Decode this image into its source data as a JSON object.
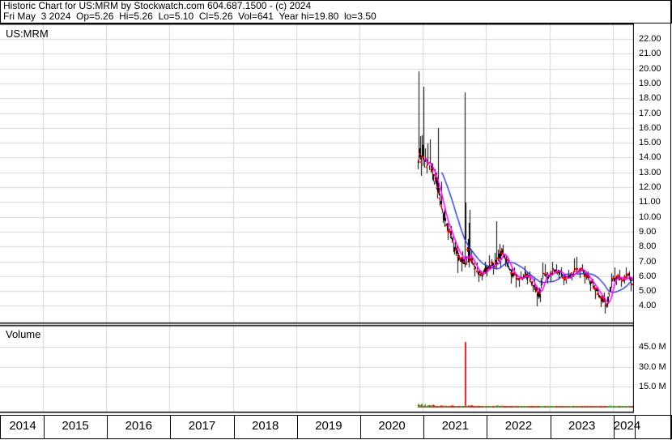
{
  "header": {
    "line1": "Historic Chart for US:MRM by Stockwatch.com 604.687.1500 - (c) 2024",
    "line2": "Fri May  3 2024  Op=5.26  Hi=5.26  Lo=5.10  Cl=5.26  Vol=641  Year hi=19.80  lo=3.50"
  },
  "price_pane": {
    "symbol_label": "US:MRM"
  },
  "volume_pane": {
    "label": "Volume"
  },
  "axes": {
    "price_ticks": [
      "22.00",
      "21.00",
      "20.00",
      "19.00",
      "18.00",
      "17.00",
      "16.00",
      "15.00",
      "14.00",
      "13.00",
      "12.00",
      "11.00",
      "10.00",
      "9.00",
      "8.00",
      "7.00",
      "6.00",
      "5.00",
      "4.00"
    ],
    "volume_ticks": [
      "45.0 M",
      "30.0 M",
      "15.0 M"
    ],
    "years": [
      "2014",
      "2015",
      "2016",
      "2017",
      "2018",
      "2019",
      "2020",
      "2021",
      "2022",
      "2023",
      "2024"
    ]
  },
  "colors": {
    "grid": "#d4d4d4",
    "bar": "#000000",
    "close_tick": "#ff0000",
    "ma_short": "#ff00ff",
    "ma_long": "#2233cc",
    "volume_up": "#35a835",
    "volume_down": "#cc2020",
    "border": "#000000"
  },
  "chart_data": {
    "type": "ohlc-with-volume",
    "symbol": "US:MRM",
    "title": "Historic Chart for US:MRM",
    "x_range": {
      "start_year_frac": 2014.32,
      "end_year_frac": 2024.345
    },
    "price_axis": {
      "min": 4,
      "max": 22,
      "step": 1
    },
    "volume_axis_millions": [
      15,
      30,
      45
    ],
    "first_open": 14.0,
    "last_close": 5.26,
    "year_high": 19.8,
    "year_low": 3.5,
    "last_day": {
      "date": "Fri May 3 2024",
      "op": 5.26,
      "hi": 5.26,
      "lo": 5.1,
      "cl": 5.26,
      "vol": 641
    },
    "ma": {
      "short_period": 8,
      "long_period": 30
    },
    "monthly": [
      {
        "y": 2020,
        "m": 12,
        "h": 19.8,
        "l": 12.8,
        "c": 14.0,
        "v": 2.0,
        "hp": 0.12,
        "lp": 0.7
      },
      {
        "y": 2021,
        "m": 1,
        "h": 18.8,
        "l": 12.9,
        "c": 13.6,
        "v": 1.2,
        "hp": 0.2,
        "lp": 0.8
      },
      {
        "y": 2021,
        "m": 2,
        "h": 15.2,
        "l": 12.5,
        "c": 13.1,
        "v": 0.8,
        "hp": 0.3,
        "lp": 0.9
      },
      {
        "y": 2021,
        "m": 3,
        "h": 16.0,
        "l": 11.2,
        "c": 11.6,
        "v": 0.9,
        "hp": 0.95,
        "lp": 0.8
      },
      {
        "y": 2021,
        "m": 4,
        "h": 12.4,
        "l": 9.6,
        "c": 10.1,
        "v": 0.7,
        "hp": 0.6,
        "lp": 0.9
      },
      {
        "y": 2021,
        "m": 5,
        "h": 10.6,
        "l": 8.4,
        "c": 9.0,
        "v": 0.6,
        "hp": 0.15,
        "lp": 0.85
      },
      {
        "y": 2021,
        "m": 6,
        "h": 9.4,
        "l": 7.6,
        "c": 8.1,
        "v": 0.6,
        "hp": 0.4,
        "lp": 0.9
      },
      {
        "y": 2021,
        "m": 7,
        "h": 8.4,
        "l": 6.2,
        "c": 7.3,
        "v": 0.5,
        "hp": 0.1,
        "lp": 0.6
      },
      {
        "y": 2021,
        "m": 8,
        "h": 7.7,
        "l": 6.3,
        "c": 7.0,
        "v": 0.5,
        "hp": 0.5,
        "lp": 0.3
      },
      {
        "y": 2021,
        "m": 9,
        "h": 18.4,
        "l": 6.6,
        "c": 7.2,
        "v": 0.8,
        "hp": 0.08,
        "lp": 0.9,
        "vs": 48.5
      },
      {
        "y": 2021,
        "m": 10,
        "h": 7.7,
        "l": 6.0,
        "c": 6.5,
        "v": 0.6,
        "hp": 0.2,
        "lp": 0.9
      },
      {
        "y": 2021,
        "m": 11,
        "h": 6.9,
        "l": 5.6,
        "c": 6.1,
        "v": 0.5,
        "hp": 0.3,
        "lp": 0.7
      },
      {
        "y": 2021,
        "m": 12,
        "h": 7.0,
        "l": 5.7,
        "c": 6.4,
        "v": 0.5,
        "hp": 0.9,
        "lp": 0.2
      },
      {
        "y": 2022,
        "m": 1,
        "h": 7.4,
        "l": 6.0,
        "c": 6.7,
        "v": 0.5,
        "hp": 0.6,
        "lp": 0.2
      },
      {
        "y": 2022,
        "m": 2,
        "h": 7.6,
        "l": 6.1,
        "c": 6.9,
        "v": 0.5,
        "hp": 0.7,
        "lp": 0.3
      },
      {
        "y": 2022,
        "m": 3,
        "h": 9.7,
        "l": 6.5,
        "c": 7.6,
        "v": 0.9,
        "hp": 0.08,
        "lp": 0.9
      },
      {
        "y": 2022,
        "m": 4,
        "h": 8.1,
        "l": 6.6,
        "c": 7.0,
        "v": 0.5,
        "hp": 0.2,
        "lp": 0.8
      },
      {
        "y": 2022,
        "m": 5,
        "h": 7.3,
        "l": 5.5,
        "c": 6.2,
        "v": 0.5,
        "hp": 0.1,
        "lp": 0.8
      },
      {
        "y": 2022,
        "m": 6,
        "h": 6.6,
        "l": 5.2,
        "c": 5.8,
        "v": 0.4,
        "hp": 0.3,
        "lp": 0.7
      },
      {
        "y": 2022,
        "m": 7,
        "h": 6.3,
        "l": 5.3,
        "c": 5.9,
        "v": 0.4,
        "hp": 0.6,
        "lp": 0.2
      },
      {
        "y": 2022,
        "m": 8,
        "h": 6.7,
        "l": 5.4,
        "c": 6.0,
        "v": 0.4,
        "hp": 0.4,
        "lp": 0.8
      },
      {
        "y": 2022,
        "m": 9,
        "h": 6.3,
        "l": 4.9,
        "c": 5.3,
        "v": 0.4,
        "hp": 0.1,
        "lp": 0.9
      },
      {
        "y": 2022,
        "m": 10,
        "h": 5.8,
        "l": 4.0,
        "c": 4.7,
        "v": 0.5,
        "hp": 0.15,
        "lp": 0.6
      },
      {
        "y": 2022,
        "m": 11,
        "h": 6.9,
        "l": 4.2,
        "c": 6.2,
        "v": 0.6,
        "hp": 0.8,
        "lp": 0.1
      },
      {
        "y": 2022,
        "m": 12,
        "h": 6.8,
        "l": 5.5,
        "c": 6.0,
        "v": 0.4,
        "hp": 0.2,
        "lp": 0.7
      },
      {
        "y": 2023,
        "m": 1,
        "h": 7.0,
        "l": 5.6,
        "c": 6.4,
        "v": 0.4,
        "hp": 0.5,
        "lp": 0.15
      },
      {
        "y": 2023,
        "m": 2,
        "h": 6.8,
        "l": 5.8,
        "c": 6.2,
        "v": 0.4,
        "hp": 0.3,
        "lp": 0.8
      },
      {
        "y": 2023,
        "m": 3,
        "h": 6.6,
        "l": 5.4,
        "c": 5.8,
        "v": 0.4,
        "hp": 0.2,
        "lp": 0.7
      },
      {
        "y": 2023,
        "m": 4,
        "h": 6.4,
        "l": 5.5,
        "c": 6.0,
        "v": 0.3,
        "hp": 0.7,
        "lp": 0.2
      },
      {
        "y": 2023,
        "m": 5,
        "h": 7.2,
        "l": 5.7,
        "c": 6.3,
        "v": 0.4,
        "hp": 0.85,
        "lp": 0.2
      },
      {
        "y": 2023,
        "m": 6,
        "h": 7.3,
        "l": 5.9,
        "c": 6.5,
        "v": 0.4,
        "hp": 0.15,
        "lp": 0.8
      },
      {
        "y": 2023,
        "m": 7,
        "h": 6.8,
        "l": 5.5,
        "c": 6.0,
        "v": 0.3,
        "hp": 0.2,
        "lp": 0.8
      },
      {
        "y": 2023,
        "m": 8,
        "h": 6.3,
        "l": 5.0,
        "c": 5.5,
        "v": 0.3,
        "hp": 0.25,
        "lp": 0.85
      },
      {
        "y": 2023,
        "m": 9,
        "h": 5.8,
        "l": 4.5,
        "c": 5.0,
        "v": 0.3,
        "hp": 0.2,
        "lp": 0.8
      },
      {
        "y": 2023,
        "m": 10,
        "h": 5.3,
        "l": 3.9,
        "c": 4.4,
        "v": 0.4,
        "hp": 0.15,
        "lp": 0.8
      },
      {
        "y": 2023,
        "m": 11,
        "h": 4.9,
        "l": 3.5,
        "c": 4.0,
        "v": 0.4,
        "hp": 0.3,
        "lp": 0.55
      },
      {
        "y": 2023,
        "m": 12,
        "h": 6.2,
        "l": 3.9,
        "c": 5.8,
        "v": 0.5,
        "hp": 0.9,
        "lp": 0.05
      },
      {
        "y": 2024,
        "m": 1,
        "h": 6.6,
        "l": 5.4,
        "c": 6.0,
        "v": 0.4,
        "hp": 0.4,
        "lp": 0.8
      },
      {
        "y": 2024,
        "m": 2,
        "h": 6.4,
        "l": 5.3,
        "c": 5.7,
        "v": 0.4,
        "hp": 0.3,
        "lp": 0.7
      },
      {
        "y": 2024,
        "m": 3,
        "h": 6.6,
        "l": 5.5,
        "c": 6.1,
        "v": 0.4,
        "hp": 0.6,
        "lp": 0.2
      },
      {
        "y": 2024,
        "m": 4,
        "h": 6.3,
        "l": 5.0,
        "c": 5.26,
        "v": 0.3,
        "hp": 0.2,
        "lp": 0.55
      }
    ]
  }
}
